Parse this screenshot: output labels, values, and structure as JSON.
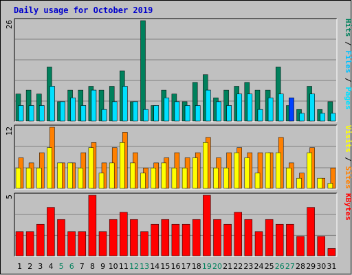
{
  "colors": {
    "background": "#C0C0C0",
    "grid": "#808080",
    "hits": "#00805C",
    "files": "#00C0FF",
    "files_highlight": "#0040FF",
    "pages": "#00E0FF",
    "sites": "#FF8000",
    "visits": "#FFFF00",
    "kbytes": "#FF0000",
    "weekday_label": "#000000",
    "weekend_label": "#00805C",
    "title": "#0000CC"
  },
  "chart_data": {
    "type": "bar",
    "title": "Daily usage for October 2019",
    "categories": [
      "1",
      "2",
      "3",
      "4",
      "5",
      "6",
      "7",
      "8",
      "9",
      "10",
      "11",
      "12",
      "13",
      "14",
      "15",
      "16",
      "17",
      "18",
      "19",
      "20",
      "21",
      "22",
      "23",
      "24",
      "25",
      "26",
      "27",
      "28",
      "29",
      "30",
      "31"
    ],
    "weekend_days": [
      "5",
      "6",
      "12",
      "13",
      "19",
      "20",
      "26",
      "27"
    ],
    "panels": [
      {
        "name": "hits-files-pages",
        "scale_label": "26",
        "ylim": [
          0,
          26
        ],
        "legend": [
          "Pages",
          "Files",
          "Hits"
        ],
        "series": [
          {
            "name": "Hits",
            "color": "#00805C",
            "values": [
              7,
              8,
              7,
              14,
              5,
              8,
              8,
              9,
              8,
              9,
              13,
              5,
              26,
              4,
              8,
              7,
              5,
              10,
              12,
              6,
              8,
              9,
              10,
              8,
              8,
              14,
              4,
              3,
              9,
              3,
              5
            ]
          },
          {
            "name": "Files",
            "color": "#00C0FF",
            "values": [
              4,
              4,
              4,
              9,
              5,
              6,
              4,
              8,
              3,
              5,
              9,
              5,
              3,
              4,
              6,
              5,
              4,
              4,
              8,
              5,
              4,
              7,
              7,
              3,
              6,
              7,
              6,
              2,
              7,
              2,
              2
            ]
          },
          {
            "name": "Pages",
            "color": "#00E0FF",
            "values": [
              4,
              4,
              4,
              9,
              5,
              6,
              4,
              8,
              3,
              5,
              9,
              5,
              3,
              4,
              6,
              5,
              4,
              4,
              8,
              5,
              4,
              7,
              7,
              3,
              6,
              7,
              6,
              2,
              7,
              2,
              2
            ]
          }
        ]
      },
      {
        "name": "visits-sites",
        "scale_label": "12",
        "ylim": [
          0,
          12
        ],
        "legend": [
          "Sites",
          "Visits"
        ],
        "series": [
          {
            "name": "Sites",
            "color": "#FF8000",
            "values": [
              6,
              5,
              7,
              12,
              5,
              5,
              7,
              9,
              5,
              8,
              11,
              7,
              4,
              5,
              6,
              7,
              6,
              7,
              10,
              6,
              7,
              8,
              7,
              7,
              7,
              10,
              5,
              3,
              8,
              2,
              4
            ]
          },
          {
            "name": "Visits",
            "color": "#FFFF00",
            "values": [
              4,
              4,
              4,
              8,
              5,
              5,
              4,
              8,
              3,
              5,
              9,
              5,
              3,
              4,
              5,
              4,
              4,
              6,
              9,
              4,
              4,
              7,
              6,
              3,
              7,
              7,
              4,
              2,
              7,
              2,
              1
            ]
          }
        ]
      },
      {
        "name": "kbytes",
        "scale_label": "5",
        "ylim": [
          0,
          5
        ],
        "legend": [
          "KBytes"
        ],
        "series": [
          {
            "name": "KBytes",
            "color": "#FF0000",
            "values": [
              2,
              2,
              2.6,
              4,
              3,
              2,
              2,
              5,
              2,
              3,
              3.6,
              3,
              2,
              2.6,
              3,
              2.6,
              2.6,
              3,
              5,
              3,
              2.6,
              3.6,
              3,
              2,
              3,
              2.6,
              2.6,
              1.6,
              4,
              1.6,
              0.6
            ]
          }
        ]
      }
    ]
  }
}
